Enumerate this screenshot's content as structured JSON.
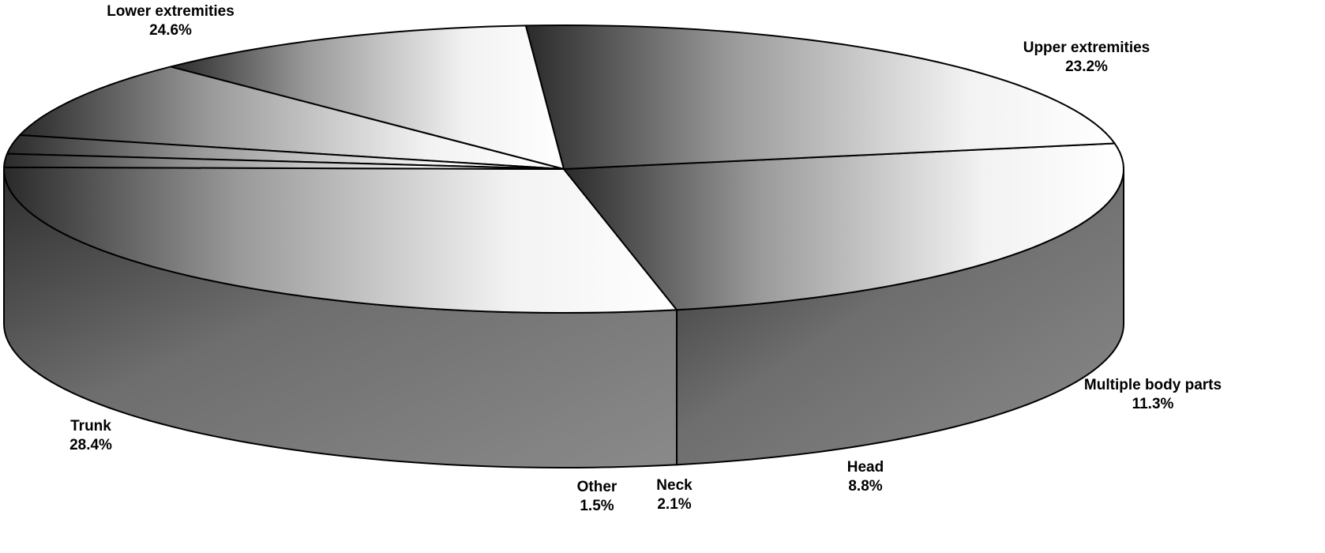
{
  "chart_data": {
    "type": "pie",
    "title": "",
    "slices": [
      {
        "label": "Trunk",
        "value_label": "28.4%",
        "value": 28.4
      },
      {
        "label": "Lower extremities",
        "value_label": "24.6%",
        "value": 24.6
      },
      {
        "label": "Upper extremities",
        "value_label": "23.2%",
        "value": 23.2
      },
      {
        "label": "Multiple body parts",
        "value_label": "11.3%",
        "value": 11.3
      },
      {
        "label": "Head",
        "value_label": "8.8%",
        "value": 8.8
      },
      {
        "label": "Neck",
        "value_label": "2.1%",
        "value": 2.1
      },
      {
        "label": "Other",
        "value_label": "1.5%",
        "value": 1.5
      }
    ],
    "style": "3d"
  }
}
